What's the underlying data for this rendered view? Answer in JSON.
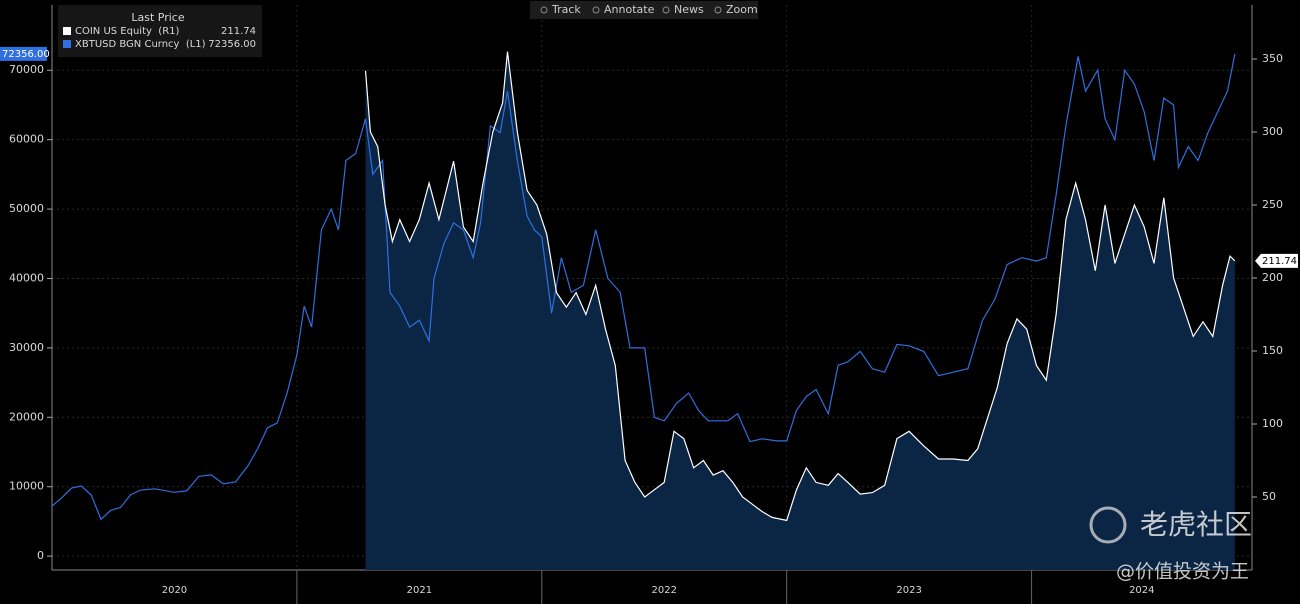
{
  "chart_data": {
    "type": "line",
    "legend_title": "Last Price",
    "toolbar": [
      "Track",
      "Annotate",
      "News",
      "Zoom"
    ],
    "watermark": {
      "brand": "老虎社区",
      "author": "@价值投资为王"
    },
    "xlim": [
      2020,
      2024.9
    ],
    "xticks": [
      2021,
      2022,
      2023,
      2024
    ],
    "year_labels": [
      "2020",
      "2021",
      "2022",
      "2023",
      "2024"
    ],
    "ylim": [
      -2000,
      79400
    ],
    "yticks": [
      0,
      10000,
      20000,
      30000,
      40000,
      50000,
      60000,
      70000
    ],
    "y2lim": [
      0,
      387
    ],
    "y2ticks": [
      50,
      100,
      150,
      200,
      250,
      300,
      350
    ],
    "grid": true,
    "series": [
      {
        "name": "COIN US Equity  (R1)",
        "color": "#ffffff",
        "fill": "#0b2545",
        "axis": "y2",
        "last_label": "211.74",
        "x": [
          2021.28,
          2021.3,
          2021.33,
          2021.36,
          2021.39,
          2021.42,
          2021.46,
          2021.5,
          2021.54,
          2021.58,
          2021.61,
          2021.64,
          2021.68,
          2021.72,
          2021.76,
          2021.8,
          2021.84,
          2021.86,
          2021.9,
          2021.94,
          2021.98,
          2022.02,
          2022.06,
          2022.1,
          2022.14,
          2022.18,
          2022.22,
          2022.26,
          2022.3,
          2022.34,
          2022.38,
          2022.42,
          2022.46,
          2022.5,
          2022.54,
          2022.58,
          2022.62,
          2022.66,
          2022.7,
          2022.74,
          2022.78,
          2022.82,
          2022.86,
          2022.9,
          2022.94,
          2022.97,
          2023.0,
          2023.04,
          2023.08,
          2023.12,
          2023.17,
          2023.21,
          2023.25,
          2023.3,
          2023.35,
          2023.4,
          2023.45,
          2023.5,
          2023.56,
          2023.62,
          2023.68,
          2023.74,
          2023.78,
          2023.82,
          2023.86,
          2023.9,
          2023.94,
          2023.98,
          2024.02,
          2024.06,
          2024.1,
          2024.14,
          2024.18,
          2024.22,
          2024.26,
          2024.3,
          2024.34,
          2024.38,
          2024.42,
          2024.46,
          2024.5,
          2024.54,
          2024.58,
          2024.62,
          2024.66,
          2024.7,
          2024.74,
          2024.78,
          2024.81,
          2024.83
        ],
        "values": [
          342,
          300,
          290,
          250,
          225,
          240,
          225,
          240,
          265,
          240,
          260,
          280,
          235,
          225,
          265,
          300,
          320,
          355,
          300,
          260,
          250,
          230,
          190,
          180,
          190,
          175,
          195,
          165,
          140,
          75,
          60,
          50,
          55,
          60,
          95,
          90,
          70,
          75,
          65,
          68,
          60,
          50,
          45,
          40,
          36,
          35,
          34,
          55,
          70,
          60,
          58,
          66,
          60,
          52,
          53,
          58,
          90,
          95,
          85,
          76,
          76,
          75,
          83,
          104,
          125,
          155,
          172,
          165,
          140,
          130,
          175,
          240,
          265,
          240,
          205,
          250,
          210,
          230,
          250,
          235,
          210,
          255,
          200,
          180,
          160,
          170,
          160,
          195,
          215,
          211.74
        ]
      },
      {
        "name": "XBTUSD BGN Curncy  (L1)",
        "color": "#2f6fe0",
        "axis": "y",
        "last_label": "72356.00",
        "x": [
          2020.0,
          2020.04,
          2020.08,
          2020.12,
          2020.16,
          2020.2,
          2020.24,
          2020.28,
          2020.32,
          2020.36,
          2020.42,
          2020.5,
          2020.55,
          2020.6,
          2020.65,
          2020.7,
          2020.75,
          2020.8,
          2020.84,
          2020.88,
          2020.92,
          2020.96,
          2021.0,
          2021.03,
          2021.06,
          2021.1,
          2021.14,
          2021.17,
          2021.2,
          2021.24,
          2021.28,
          2021.31,
          2021.35,
          2021.38,
          2021.42,
          2021.46,
          2021.5,
          2021.54,
          2021.56,
          2021.6,
          2021.64,
          2021.68,
          2021.72,
          2021.75,
          2021.79,
          2021.83,
          2021.86,
          2021.9,
          2021.94,
          2021.97,
          2022.0,
          2022.04,
          2022.08,
          2022.12,
          2022.17,
          2022.22,
          2022.27,
          2022.32,
          2022.36,
          2022.42,
          2022.46,
          2022.5,
          2022.55,
          2022.6,
          2022.64,
          2022.68,
          2022.72,
          2022.76,
          2022.8,
          2022.85,
          2022.9,
          2022.96,
          2023.0,
          2023.04,
          2023.08,
          2023.12,
          2023.17,
          2023.21,
          2023.25,
          2023.3,
          2023.35,
          2023.4,
          2023.45,
          2023.5,
          2023.56,
          2023.62,
          2023.68,
          2023.74,
          2023.8,
          2023.85,
          2023.9,
          2023.96,
          2024.02,
          2024.06,
          2024.1,
          2024.14,
          2024.19,
          2024.22,
          2024.27,
          2024.3,
          2024.34,
          2024.38,
          2024.42,
          2024.46,
          2024.5,
          2024.54,
          2024.58,
          2024.6,
          2024.64,
          2024.68,
          2024.72,
          2024.76,
          2024.8,
          2024.83
        ],
        "values": [
          7200,
          8400,
          9800,
          10100,
          8800,
          5300,
          6600,
          7000,
          8800,
          9500,
          9700,
          9200,
          9400,
          11500,
          11700,
          10400,
          10700,
          13000,
          15500,
          18500,
          19200,
          23500,
          29000,
          36000,
          33000,
          47000,
          50000,
          47000,
          57000,
          58000,
          63000,
          55000,
          57000,
          38000,
          36000,
          33000,
          34000,
          31000,
          40000,
          45000,
          48000,
          47000,
          43000,
          48000,
          62000,
          61000,
          67000,
          57000,
          49000,
          47000,
          46000,
          35000,
          43000,
          38000,
          39000,
          47000,
          40000,
          38000,
          30000,
          30000,
          20000,
          19500,
          22000,
          23500,
          21000,
          19500,
          19500,
          19500,
          20500,
          16500,
          16900,
          16600,
          16600,
          21000,
          23000,
          24000,
          20500,
          27500,
          28000,
          29500,
          27000,
          26500,
          30500,
          30300,
          29500,
          26000,
          26500,
          27000,
          34000,
          37000,
          42000,
          43000,
          42500,
          43000,
          52000,
          62000,
          72000,
          67000,
          70000,
          63000,
          60000,
          70000,
          68000,
          64000,
          57000,
          66000,
          65000,
          56000,
          59000,
          57000,
          61000,
          64000,
          67000,
          72356
        ]
      }
    ]
  }
}
